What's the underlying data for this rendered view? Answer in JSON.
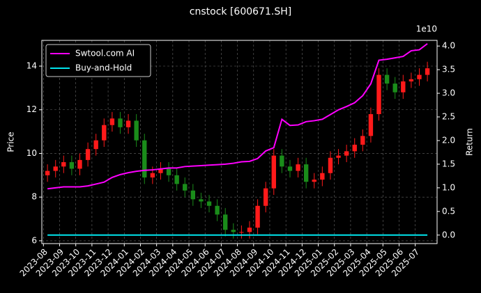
{
  "chart_data": {
    "type": "candlestick",
    "title": "cnstock [600671.SH]",
    "y_label": "Price",
    "y2_label": "Return",
    "y2_offset_label": "1e10",
    "x": [
      0.25,
      0.75,
      1.25,
      1.75,
      2.25,
      2.75,
      3.25,
      3.75,
      4.25,
      4.75,
      5.25,
      5.75,
      6.25,
      6.75,
      7.25,
      7.75,
      8.25,
      8.75,
      9.25,
      9.75,
      10.25,
      10.75,
      11.25,
      11.75,
      12.25,
      12.75,
      13.25,
      13.75,
      14.25,
      14.75,
      15.25,
      15.75,
      16.25,
      16.75,
      17.25,
      17.75,
      18.25,
      18.75,
      19.25,
      19.75,
      20.25,
      20.75,
      21.25,
      21.75,
      22.25,
      22.75,
      23.25,
      23.75
    ],
    "open": [
      9.0,
      9.2,
      9.4,
      9.6,
      9.3,
      9.7,
      10.2,
      10.6,
      11.3,
      11.6,
      11.2,
      11.5,
      10.6,
      8.9,
      9.1,
      9.3,
      9.0,
      8.6,
      8.3,
      7.9,
      7.8,
      7.6,
      7.2,
      6.5,
      6.4,
      6.4,
      6.6,
      7.6,
      8.4,
      9.9,
      9.4,
      9.2,
      9.5,
      8.7,
      8.8,
      9.1,
      9.8,
      9.9,
      10.1,
      10.4,
      10.8,
      11.8,
      13.6,
      13.2,
      12.8,
      13.3,
      13.4,
      13.6
    ],
    "high": [
      9.5,
      9.7,
      9.9,
      9.9,
      10.0,
      10.5,
      10.9,
      11.6,
      11.9,
      11.9,
      11.8,
      11.8,
      10.9,
      9.4,
      9.6,
      9.6,
      9.3,
      8.9,
      8.6,
      8.2,
      8.1,
      7.9,
      7.5,
      6.8,
      6.7,
      6.9,
      7.9,
      8.7,
      10.2,
      10.2,
      9.7,
      9.8,
      9.8,
      9.1,
      9.4,
      10.1,
      10.2,
      10.4,
      10.7,
      11.1,
      12.1,
      13.9,
      13.9,
      13.5,
      13.6,
      13.7,
      13.9,
      14.2
    ],
    "low": [
      8.7,
      8.9,
      9.1,
      9.0,
      9.0,
      9.4,
      9.9,
      10.3,
      11.0,
      10.9,
      10.9,
      10.3,
      8.6,
      8.6,
      8.8,
      8.7,
      8.3,
      8.0,
      7.6,
      7.5,
      7.3,
      6.9,
      6.2,
      6.1,
      6.1,
      6.1,
      6.3,
      7.3,
      8.1,
      9.1,
      8.9,
      8.9,
      8.4,
      8.4,
      8.5,
      8.8,
      9.5,
      9.6,
      9.8,
      10.1,
      10.5,
      11.5,
      12.9,
      12.5,
      12.5,
      13.0,
      13.1,
      13.3
    ],
    "close": [
      9.2,
      9.4,
      9.6,
      9.3,
      9.7,
      10.2,
      10.6,
      11.3,
      11.6,
      11.2,
      11.5,
      10.6,
      8.9,
      9.1,
      9.3,
      9.0,
      8.6,
      8.3,
      7.9,
      7.8,
      7.6,
      7.2,
      6.5,
      6.4,
      6.4,
      6.6,
      7.6,
      8.4,
      9.9,
      9.4,
      9.2,
      9.5,
      8.7,
      8.8,
      9.1,
      9.8,
      9.9,
      10.1,
      10.4,
      10.8,
      11.8,
      13.6,
      13.2,
      12.8,
      13.3,
      13.4,
      13.6,
      13.9
    ],
    "up_color": "#ff1a1a",
    "down_color": "#1a8c1a",
    "series": [
      {
        "name": "Swtool.com AI",
        "color": "#ff00ff",
        "axis": "y2",
        "values": [
          0.98,
          1.0,
          1.02,
          1.02,
          1.02,
          1.04,
          1.08,
          1.12,
          1.22,
          1.28,
          1.32,
          1.35,
          1.37,
          1.38,
          1.4,
          1.42,
          1.42,
          1.45,
          1.46,
          1.47,
          1.48,
          1.49,
          1.5,
          1.52,
          1.55,
          1.56,
          1.62,
          1.78,
          1.85,
          2.45,
          2.32,
          2.33,
          2.4,
          2.42,
          2.45,
          2.55,
          2.65,
          2.72,
          2.8,
          2.95,
          3.2,
          3.7,
          3.72,
          3.75,
          3.78,
          3.9,
          3.92,
          4.05
        ]
      },
      {
        "name": "Buy-and-Hold",
        "color": "#00e5ee",
        "axis": "y2",
        "values": [
          0,
          0,
          0,
          0,
          0,
          0,
          0,
          0,
          0,
          0,
          0,
          0,
          0,
          0,
          0,
          0,
          0,
          0,
          0,
          0,
          0,
          0,
          0,
          0,
          0,
          0,
          0,
          0,
          0,
          0,
          0,
          0,
          0,
          0,
          0,
          0,
          0,
          0,
          0,
          0,
          0,
          0,
          0,
          0,
          0,
          0,
          0,
          0
        ]
      }
    ],
    "xlim": [
      -0.1,
      24.35
    ],
    "xticks": [
      {
        "value": 0,
        "label": "2023-08"
      },
      {
        "value": 1,
        "label": "2023-09"
      },
      {
        "value": 2,
        "label": "2023-10"
      },
      {
        "value": 3,
        "label": "2023-11"
      },
      {
        "value": 4,
        "label": "2023-12"
      },
      {
        "value": 5,
        "label": "2024-01"
      },
      {
        "value": 6,
        "label": "2024-02"
      },
      {
        "value": 7,
        "label": "2024-03"
      },
      {
        "value": 8,
        "label": "2024-04"
      },
      {
        "value": 9,
        "label": "2024-05"
      },
      {
        "value": 10,
        "label": "2024-06"
      },
      {
        "value": 11,
        "label": "2024-07"
      },
      {
        "value": 12,
        "label": "2024-08"
      },
      {
        "value": 13,
        "label": "2024-09"
      },
      {
        "value": 14,
        "label": "2024-10"
      },
      {
        "value": 15,
        "label": "2024-11"
      },
      {
        "value": 16,
        "label": "2024-12"
      },
      {
        "value": 17,
        "label": "2025-01"
      },
      {
        "value": 18,
        "label": "2025-02"
      },
      {
        "value": 19,
        "label": "2025-03"
      },
      {
        "value": 20,
        "label": "2025-04"
      },
      {
        "value": 21,
        "label": "2025-05"
      },
      {
        "value": 22,
        "label": "2025-06"
      },
      {
        "value": 23,
        "label": "2025-07"
      }
    ],
    "ylim": [
      5.87,
      15.18
    ],
    "yticks": [
      6,
      8,
      10,
      12,
      14
    ],
    "y2lim": [
      -0.18,
      4.12
    ],
    "y2ticks": [
      {
        "value": 0,
        "label": "0.0"
      },
      {
        "value": 0.5,
        "label": "0.5"
      },
      {
        "value": 1,
        "label": "1.0"
      },
      {
        "value": 1.5,
        "label": "1.5"
      },
      {
        "value": 2,
        "label": "2.0"
      },
      {
        "value": 2.5,
        "label": "2.5"
      },
      {
        "value": 3,
        "label": "3.0"
      },
      {
        "value": 3.5,
        "label": "3.5"
      },
      {
        "value": 4,
        "label": "4.0"
      }
    ],
    "grid": true,
    "legend": "upper left"
  }
}
